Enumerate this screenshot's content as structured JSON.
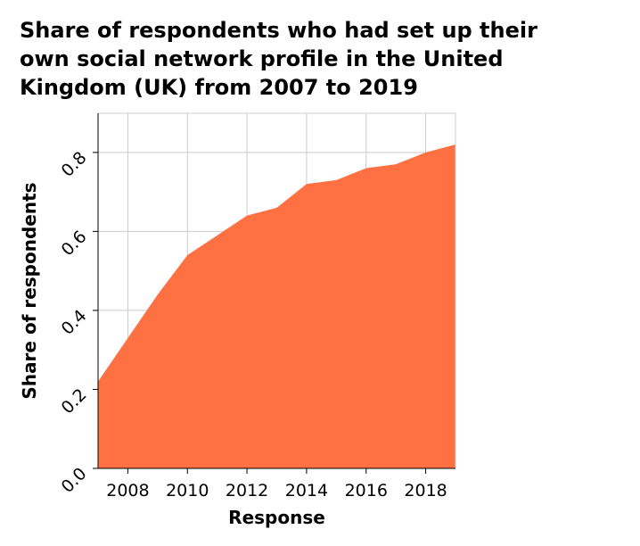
{
  "chart_data": {
    "type": "area",
    "title_lines": [
      "Share of respondents who had set up their",
      "own social network profile in the United",
      "Kingdom (UK) from 2007 to 2019"
    ],
    "xlabel": "Response",
    "ylabel": "Share of respondents",
    "x": [
      2007,
      2008,
      2009,
      2010,
      2011,
      2012,
      2013,
      2014,
      2015,
      2016,
      2017,
      2018,
      2019
    ],
    "values": [
      0.22,
      0.33,
      0.44,
      0.54,
      0.59,
      0.64,
      0.66,
      0.72,
      0.73,
      0.76,
      0.77,
      0.8,
      0.82
    ],
    "xlim": [
      2007,
      2019
    ],
    "ylim": [
      0.0,
      0.82
    ],
    "xticks": [
      2008,
      2010,
      2012,
      2014,
      2016,
      2018
    ],
    "xtick_labels": [
      "2008",
      "2010",
      "2012",
      "2014",
      "2016",
      "2018"
    ],
    "yticks": [
      0.0,
      0.2,
      0.4,
      0.6,
      0.8
    ],
    "ytick_labels": [
      "0.0",
      "0.2",
      "0.4",
      "0.6",
      "0.8"
    ],
    "grid": true,
    "fill_color": "#ff7043",
    "grid_color": "#cccccc"
  }
}
